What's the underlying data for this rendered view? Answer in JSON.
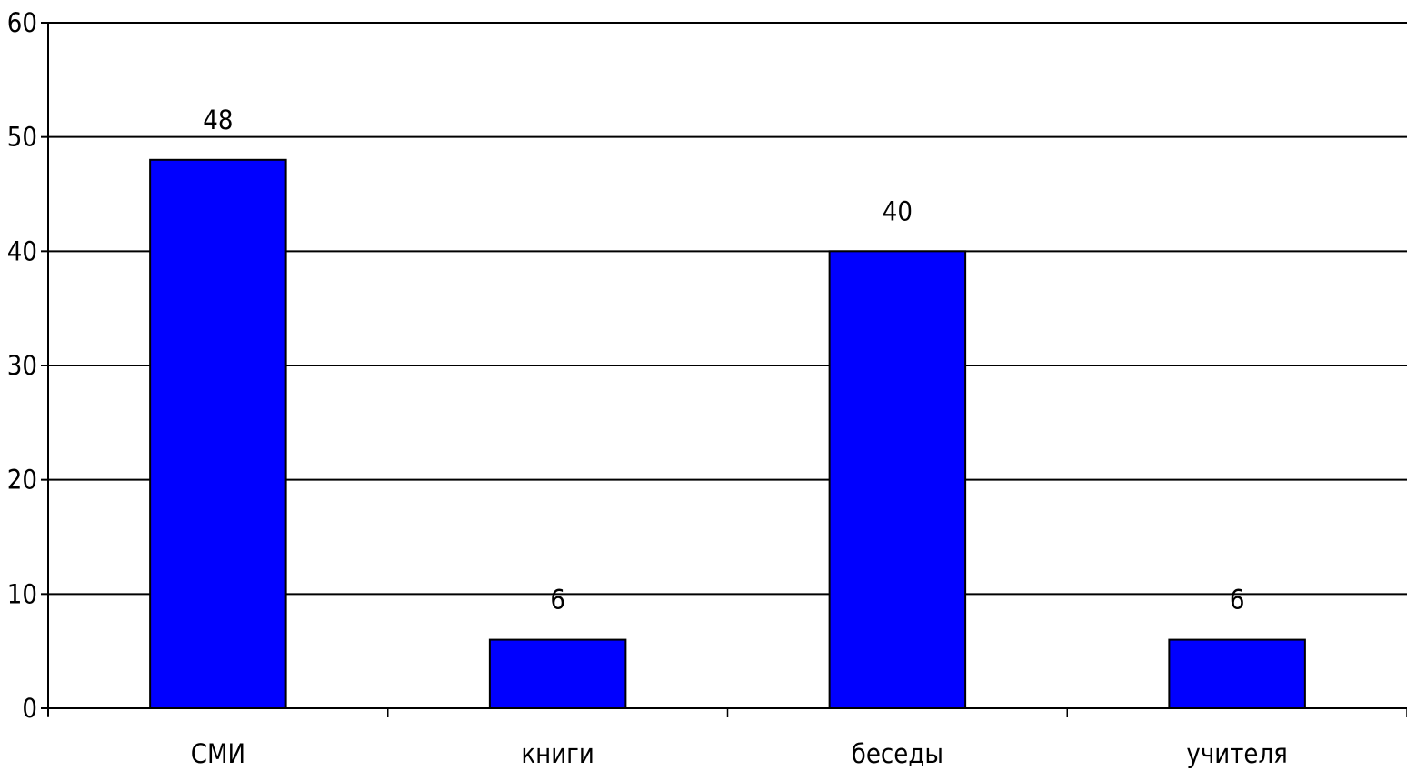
{
  "chart_data": {
    "type": "bar",
    "categories": [
      "СМИ",
      "книги",
      "беседы",
      "учителя"
    ],
    "values": [
      48,
      6,
      40,
      6
    ],
    "data_labels": [
      "48",
      "6",
      "40",
      "6"
    ],
    "title": "",
    "xlabel": "",
    "ylabel": "",
    "ylim": [
      0,
      60
    ],
    "yticks": [
      0,
      10,
      20,
      30,
      40,
      50,
      60
    ],
    "ytick_labels": [
      "0",
      "10",
      "20",
      "30",
      "40",
      "50",
      "60"
    ],
    "grid": true,
    "legend": "none",
    "colors": {
      "bar_fill": "#0000ff",
      "bar_edge": "#000000",
      "grid": "#000000",
      "axis": "#000000",
      "background": "#ffffff"
    }
  }
}
